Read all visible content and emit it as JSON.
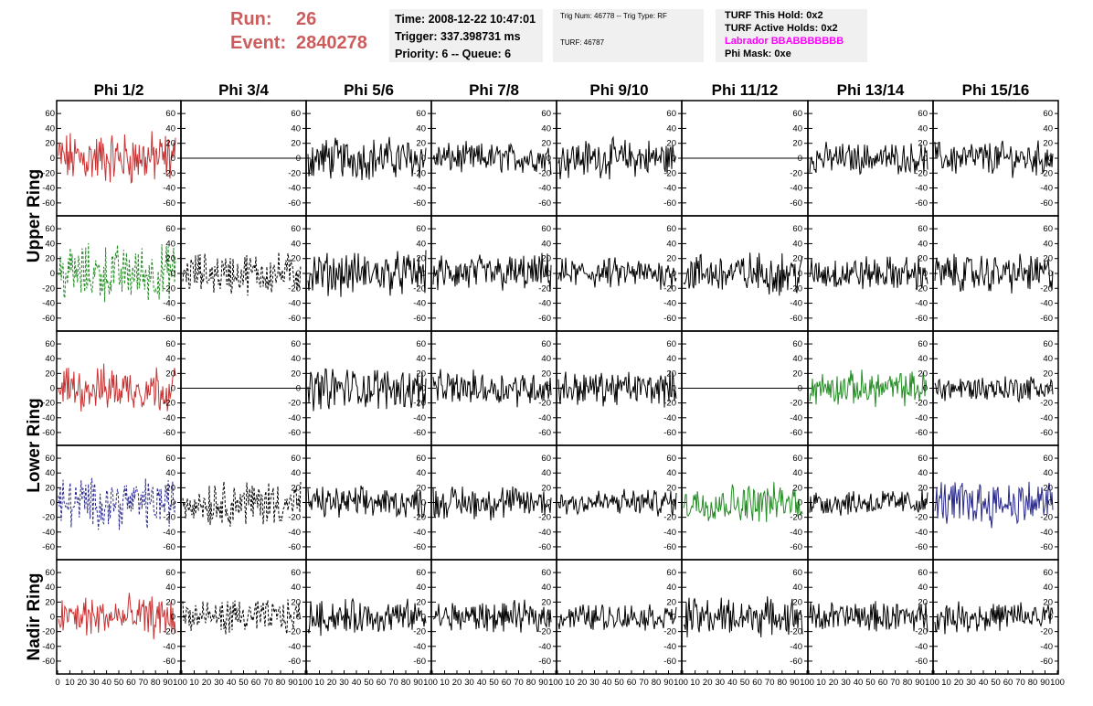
{
  "header": {
    "run_label": "Run:",
    "run_value": "26",
    "event_label": "Event:",
    "event_value": "2840278",
    "time": "Time: 2008-12-22 10:47:01",
    "trigger": "Trigger: 337.398731 ms",
    "priority": "Priority: 6 -- Queue: 6",
    "trig_num": "Trig Num: 46778 -- Trig Type: RF",
    "turf": "TURF: 46787",
    "turf_hold": "TURF This Hold: 0x2",
    "turf_active": "TURF Active Holds: 0x2",
    "labrador": "Labrador BBABBBBBBB",
    "phi_mask": "Phi Mask: 0xe"
  },
  "chart_data": {
    "type": "line",
    "column_titles": [
      "Phi 1/2",
      "Phi 3/4",
      "Phi 5/6",
      "Phi 7/8",
      "Phi 9/10",
      "Phi 11/12",
      "Phi 13/14",
      "Phi 15/16"
    ],
    "row_titles": [
      {
        "label": "Upper Ring",
        "spans": [
          0,
          1
        ]
      },
      {
        "label": "Lower Ring",
        "spans": [
          2,
          3
        ]
      },
      {
        "label": "Nadir Ring",
        "spans": [
          4,
          4
        ]
      }
    ],
    "ylim": [
      -70,
      70
    ],
    "yticks": [
      -60,
      -40,
      -20,
      0,
      20,
      40,
      60
    ],
    "xlim": [
      0,
      100
    ],
    "xticks": [
      0,
      10,
      20,
      30,
      40,
      50,
      60,
      70,
      80,
      90,
      100
    ],
    "colors": {
      "red": "#c83232",
      "green": "#228b22",
      "blue": "#28288c",
      "black": "#000000"
    },
    "panels": [
      [
        "red",
        "flat",
        "black",
        "black",
        "black",
        "flat",
        "black",
        "black"
      ],
      [
        "green-dash",
        "black-dash",
        "black",
        "black",
        "black",
        "black",
        "black",
        "black"
      ],
      [
        "red",
        "flat",
        "black",
        "black",
        "black",
        "flat",
        "green",
        "black"
      ],
      [
        "blue-dash",
        "black-dash",
        "black",
        "black",
        "black",
        "green",
        "black",
        "blue"
      ],
      [
        "red",
        "black-dash",
        "black",
        "black",
        "black",
        "black",
        "black",
        "black"
      ]
    ],
    "amplitudes": [
      [
        28,
        0,
        22,
        16,
        20,
        0,
        16,
        18
      ],
      [
        30,
        22,
        22,
        20,
        16,
        22,
        18,
        20
      ],
      [
        24,
        0,
        22,
        18,
        18,
        0,
        18,
        14
      ],
      [
        26,
        24,
        16,
        18,
        14,
        20,
        14,
        24
      ],
      [
        22,
        18,
        18,
        16,
        14,
        20,
        16,
        16
      ]
    ]
  }
}
